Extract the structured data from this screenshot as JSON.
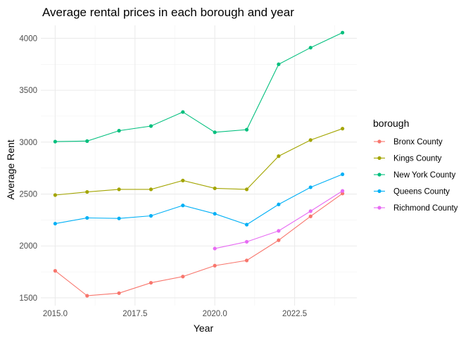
{
  "chart_data": {
    "type": "line",
    "title": "Average rental prices in each borough and year",
    "xlabel": "Year",
    "ylabel": "Average Rent",
    "xlim": [
      2014.55,
      2024.45
    ],
    "ylim": [
      1425,
      4125
    ],
    "x_ticks": [
      2015.0,
      2017.5,
      2020.0,
      2022.5
    ],
    "x_tick_labels": [
      "2015.0",
      "2017.5",
      "2020.0",
      "2022.5"
    ],
    "y_ticks": [
      1500,
      2000,
      2500,
      3000,
      3500,
      4000
    ],
    "y_tick_labels": [
      "1500",
      "2000",
      "2500",
      "3000",
      "3500",
      "4000"
    ],
    "grid": true,
    "legend": {
      "title": "borough",
      "placement": "right"
    },
    "series": [
      {
        "name": "Bronx County",
        "color": "#F8766D",
        "x": [
          2015,
          2016,
          2017,
          2018,
          2019,
          2020,
          2021,
          2022,
          2023,
          2024
        ],
        "values": [
          1760,
          1520,
          1545,
          1645,
          1705,
          1810,
          1860,
          2055,
          2285,
          2505
        ]
      },
      {
        "name": "Kings County",
        "color": "#A3A500",
        "x": [
          2015,
          2016,
          2017,
          2018,
          2019,
          2020,
          2021,
          2022,
          2023,
          2024
        ],
        "values": [
          2490,
          2520,
          2545,
          2545,
          2630,
          2555,
          2545,
          2865,
          3020,
          3130
        ]
      },
      {
        "name": "New York County",
        "color": "#00BF7D",
        "x": [
          2015,
          2016,
          2017,
          2018,
          2019,
          2020,
          2021,
          2022,
          2023,
          2024
        ],
        "values": [
          3005,
          3010,
          3110,
          3155,
          3290,
          3095,
          3120,
          3750,
          3910,
          4055
        ]
      },
      {
        "name": "Queens County",
        "color": "#00B0F6",
        "x": [
          2015,
          2016,
          2017,
          2018,
          2019,
          2020,
          2021,
          2022,
          2023,
          2024
        ],
        "values": [
          2215,
          2270,
          2265,
          2290,
          2390,
          2310,
          2205,
          2400,
          2565,
          2690
        ]
      },
      {
        "name": "Richmond County",
        "color": "#E76BF3",
        "x": [
          2020,
          2021,
          2022,
          2023,
          2024
        ],
        "values": [
          1975,
          2040,
          2145,
          2335,
          2530
        ]
      }
    ]
  }
}
